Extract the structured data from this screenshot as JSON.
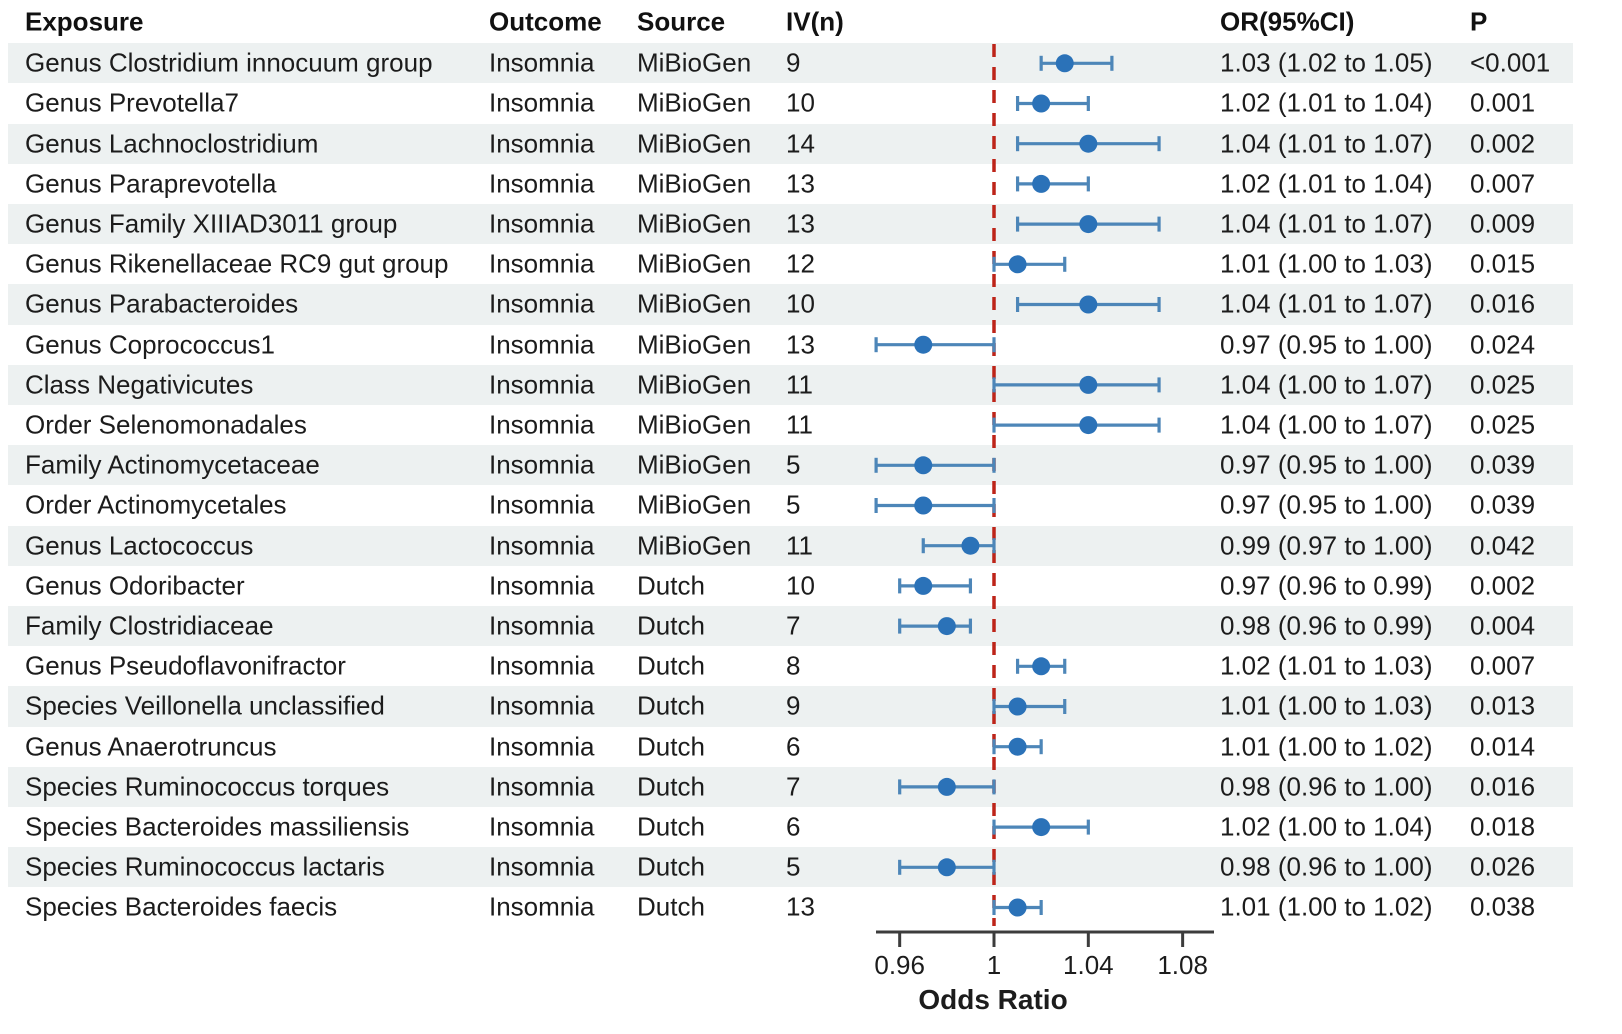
{
  "table": {
    "headers": {
      "exposure": "Exposure",
      "outcome": "Outcome",
      "source": "Source",
      "iv": "IV(n)",
      "or": "OR(95%CI)",
      "p": "P"
    }
  },
  "chart_data": {
    "type": "forest",
    "xlabel": "Odds Ratio",
    "xlim": [
      0.95,
      1.0925
    ],
    "x_ticks": [
      0.96,
      1,
      1.04,
      1.08
    ],
    "x_tick_labels": [
      "0.96",
      "1",
      "1.04",
      "1.08"
    ],
    "reference_line": 1,
    "grid": false,
    "rows": [
      {
        "exposure": "Genus Clostridium innocuum group",
        "outcome": "Insomnia",
        "source": "MiBioGen",
        "iv_n": "9",
        "or": 1.03,
        "ci_low": 1.02,
        "ci_high": 1.05,
        "or_ci": "1.03 (1.02 to 1.05)",
        "p": "<0.001"
      },
      {
        "exposure": "Genus Prevotella7",
        "outcome": "Insomnia",
        "source": "MiBioGen",
        "iv_n": "10",
        "or": 1.02,
        "ci_low": 1.01,
        "ci_high": 1.04,
        "or_ci": "1.02 (1.01 to 1.04)",
        "p": "0.001"
      },
      {
        "exposure": "Genus Lachnoclostridium",
        "outcome": "Insomnia",
        "source": "MiBioGen",
        "iv_n": "14",
        "or": 1.04,
        "ci_low": 1.01,
        "ci_high": 1.07,
        "or_ci": "1.04 (1.01 to 1.07)",
        "p": "0.002"
      },
      {
        "exposure": "Genus Paraprevotella",
        "outcome": "Insomnia",
        "source": "MiBioGen",
        "iv_n": "13",
        "or": 1.02,
        "ci_low": 1.01,
        "ci_high": 1.04,
        "or_ci": "1.02 (1.01 to 1.04)",
        "p": "0.007"
      },
      {
        "exposure": "Genus Family XIIIAD3011 group",
        "outcome": "Insomnia",
        "source": "MiBioGen",
        "iv_n": "13",
        "or": 1.04,
        "ci_low": 1.01,
        "ci_high": 1.07,
        "or_ci": "1.04 (1.01 to 1.07)",
        "p": "0.009"
      },
      {
        "exposure": "Genus Rikenellaceae RC9 gut group",
        "outcome": "Insomnia",
        "source": "MiBioGen",
        "iv_n": "12",
        "or": 1.01,
        "ci_low": 1.0,
        "ci_high": 1.03,
        "or_ci": "1.01 (1.00 to 1.03)",
        "p": "0.015"
      },
      {
        "exposure": "Genus Parabacteroides",
        "outcome": "Insomnia",
        "source": "MiBioGen",
        "iv_n": "10",
        "or": 1.04,
        "ci_low": 1.01,
        "ci_high": 1.07,
        "or_ci": "1.04 (1.01 to 1.07)",
        "p": "0.016"
      },
      {
        "exposure": "Genus Coprococcus1",
        "outcome": "Insomnia",
        "source": "MiBioGen",
        "iv_n": "13",
        "or": 0.97,
        "ci_low": 0.95,
        "ci_high": 1.0,
        "or_ci": "0.97 (0.95 to 1.00)",
        "p": "0.024"
      },
      {
        "exposure": "Class Negativicutes",
        "outcome": "Insomnia",
        "source": "MiBioGen",
        "iv_n": "11",
        "or": 1.04,
        "ci_low": 1.0,
        "ci_high": 1.07,
        "or_ci": "1.04 (1.00 to 1.07)",
        "p": "0.025"
      },
      {
        "exposure": "Order Selenomonadales",
        "outcome": "Insomnia",
        "source": "MiBioGen",
        "iv_n": "11",
        "or": 1.04,
        "ci_low": 1.0,
        "ci_high": 1.07,
        "or_ci": "1.04 (1.00 to 1.07)",
        "p": "0.025"
      },
      {
        "exposure": "Family Actinomycetaceae",
        "outcome": "Insomnia",
        "source": "MiBioGen",
        "iv_n": "5",
        "or": 0.97,
        "ci_low": 0.95,
        "ci_high": 1.0,
        "or_ci": "0.97 (0.95 to 1.00)",
        "p": "0.039"
      },
      {
        "exposure": "Order Actinomycetales",
        "outcome": "Insomnia",
        "source": "MiBioGen",
        "iv_n": "5",
        "or": 0.97,
        "ci_low": 0.95,
        "ci_high": 1.0,
        "or_ci": "0.97 (0.95 to 1.00)",
        "p": "0.039"
      },
      {
        "exposure": "Genus Lactococcus",
        "outcome": "Insomnia",
        "source": "MiBioGen",
        "iv_n": "11",
        "or": 0.99,
        "ci_low": 0.97,
        "ci_high": 1.0,
        "or_ci": "0.99 (0.97 to 1.00)",
        "p": "0.042"
      },
      {
        "exposure": "Genus Odoribacter",
        "outcome": "Insomnia",
        "source": "Dutch",
        "iv_n": "10",
        "or": 0.97,
        "ci_low": 0.96,
        "ci_high": 0.99,
        "or_ci": "0.97 (0.96 to 0.99)",
        "p": "0.002"
      },
      {
        "exposure": "Family Clostridiaceae",
        "outcome": "Insomnia",
        "source": "Dutch",
        "iv_n": "7",
        "or": 0.98,
        "ci_low": 0.96,
        "ci_high": 0.99,
        "or_ci": "0.98 (0.96 to 0.99)",
        "p": "0.004"
      },
      {
        "exposure": "Genus Pseudoflavonifractor",
        "outcome": "Insomnia",
        "source": "Dutch",
        "iv_n": "8",
        "or": 1.02,
        "ci_low": 1.01,
        "ci_high": 1.03,
        "or_ci": "1.02 (1.01 to 1.03)",
        "p": "0.007"
      },
      {
        "exposure": "Species Veillonella unclassified",
        "outcome": "Insomnia",
        "source": "Dutch",
        "iv_n": "9",
        "or": 1.01,
        "ci_low": 1.0,
        "ci_high": 1.03,
        "or_ci": "1.01 (1.00 to 1.03)",
        "p": "0.013"
      },
      {
        "exposure": "Genus Anaerotruncus",
        "outcome": "Insomnia",
        "source": "Dutch",
        "iv_n": "6",
        "or": 1.01,
        "ci_low": 1.0,
        "ci_high": 1.02,
        "or_ci": "1.01 (1.00 to 1.02)",
        "p": "0.014"
      },
      {
        "exposure": "Species Ruminococcus torques",
        "outcome": "Insomnia",
        "source": "Dutch",
        "iv_n": "7",
        "or": 0.98,
        "ci_low": 0.96,
        "ci_high": 1.0,
        "or_ci": "0.98 (0.96 to 1.00)",
        "p": "0.016"
      },
      {
        "exposure": "Species Bacteroides massiliensis",
        "outcome": "Insomnia",
        "source": "Dutch",
        "iv_n": "6",
        "or": 1.02,
        "ci_low": 1.0,
        "ci_high": 1.04,
        "or_ci": "1.02 (1.00 to 1.04)",
        "p": "0.018"
      },
      {
        "exposure": "Species Ruminococcus lactaris",
        "outcome": "Insomnia",
        "source": "Dutch",
        "iv_n": "5",
        "or": 0.98,
        "ci_low": 0.96,
        "ci_high": 1.0,
        "or_ci": "0.98 (0.96 to 1.00)",
        "p": "0.026"
      },
      {
        "exposure": "Species Bacteroides faecis",
        "outcome": "Insomnia",
        "source": "Dutch",
        "iv_n": "13",
        "or": 1.01,
        "ci_low": 1.0,
        "ci_high": 1.02,
        "or_ci": "1.01 (1.00 to 1.02)",
        "p": "0.038"
      }
    ]
  },
  "colors": {
    "marker_blue": "#2b72b8",
    "ci_blue": "#4d86b8",
    "reference_red": "#bd2419",
    "stripe": "#edf1f1",
    "axis": "#3c3c3c",
    "text": "#1c1c1c"
  }
}
